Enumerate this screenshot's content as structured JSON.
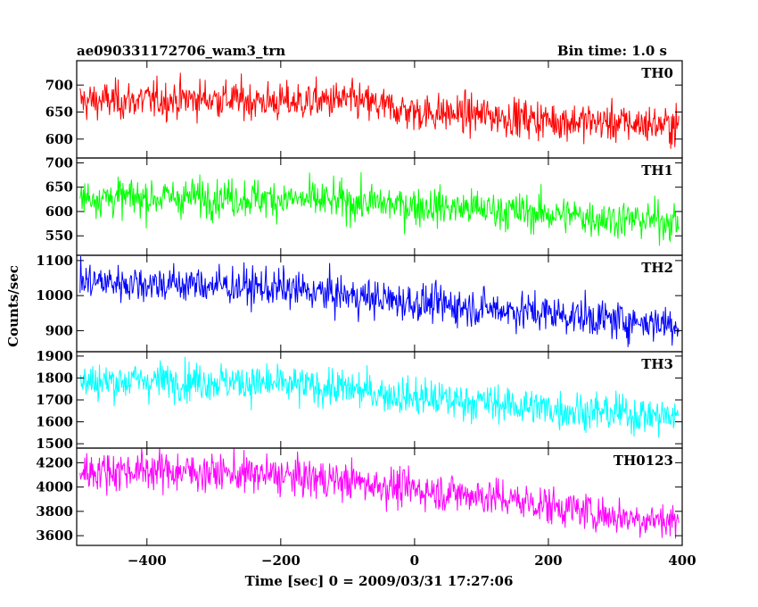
{
  "header": {
    "title": "ae090331172706_wam3_trn",
    "bin_time": "Bin time: 1.0 s"
  },
  "axes": {
    "ylabel": "Counts/sec",
    "xlabel": "Time [sec] 0 = 2009/03/31 17:27:06"
  },
  "chart_data": {
    "type": "line",
    "title": "ae090331172706_wam3_trn",
    "xlabel": "Time [sec] 0 = 2009/03/31 17:27:06",
    "ylabel": "Counts/sec",
    "xlim": [
      -505,
      400
    ],
    "x_ticks": [
      -400,
      -200,
      0,
      200,
      400
    ],
    "bin_time_s": 1.0,
    "series": [
      {
        "name": "TH0",
        "color": "#ff0000",
        "ylim": [
          565,
          745
        ],
        "y_ticks": [
          600,
          650,
          700
        ],
        "x": [
          -500,
          -400,
          -300,
          -200,
          -100,
          0,
          100,
          200,
          300,
          395
        ],
        "y": [
          670,
          672,
          675,
          668,
          672,
          650,
          645,
          635,
          630,
          625
        ]
      },
      {
        "name": "TH1",
        "color": "#00ff00",
        "ylim": [
          510,
          710
        ],
        "y_ticks": [
          550,
          600,
          650,
          700
        ],
        "x": [
          -500,
          -400,
          -300,
          -200,
          -100,
          0,
          100,
          200,
          300,
          395
        ],
        "y": [
          630,
          628,
          630,
          626,
          620,
          612,
          605,
          595,
          585,
          580
        ]
      },
      {
        "name": "TH2",
        "color": "#0000ff",
        "ylim": [
          840,
          1115
        ],
        "y_ticks": [
          900,
          1000,
          1100
        ],
        "x": [
          -500,
          -400,
          -300,
          -200,
          -100,
          0,
          100,
          200,
          300,
          395
        ],
        "y": [
          1040,
          1035,
          1030,
          1020,
          1000,
          980,
          965,
          950,
          930,
          920
        ]
      },
      {
        "name": "TH3",
        "color": "#00ffff",
        "ylim": [
          1480,
          1920
        ],
        "y_ticks": [
          1500,
          1600,
          1700,
          1800,
          1900
        ],
        "x": [
          -500,
          -400,
          -300,
          -200,
          -100,
          0,
          100,
          200,
          300,
          395
        ],
        "y": [
          1780,
          1790,
          1785,
          1770,
          1750,
          1710,
          1690,
          1660,
          1640,
          1620
        ]
      },
      {
        "name": "TH0123",
        "color": "#ff00ff",
        "ylim": [
          3520,
          4320
        ],
        "y_ticks": [
          3600,
          3800,
          4000,
          4200
        ],
        "x": [
          -500,
          -400,
          -300,
          -200,
          -100,
          0,
          100,
          200,
          300,
          395
        ],
        "y": [
          4130,
          4140,
          4120,
          4090,
          4050,
          3980,
          3930,
          3850,
          3760,
          3720
        ]
      }
    ]
  }
}
